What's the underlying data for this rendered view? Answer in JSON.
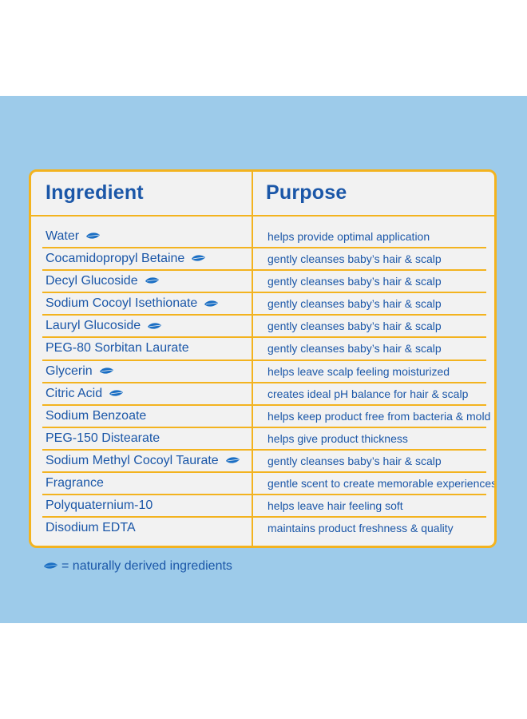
{
  "colors": {
    "background_band": "#9dcbea",
    "card": "#f2f2f2",
    "border": "#f3b31f",
    "text": "#1b57a8",
    "leaf": "#1b6fc4"
  },
  "table": {
    "header_ingredient": "Ingredient",
    "header_purpose": "Purpose",
    "rows": [
      {
        "ingredient": "Water",
        "natural": true,
        "purpose": "helps provide optimal application"
      },
      {
        "ingredient": "Cocamidopropyl Betaine",
        "natural": true,
        "purpose": "gently cleanses baby’s hair & scalp"
      },
      {
        "ingredient": "Decyl Glucoside",
        "natural": true,
        "purpose": "gently cleanses baby’s hair & scalp"
      },
      {
        "ingredient": "Sodium Cocoyl Isethionate",
        "natural": true,
        "purpose": "gently cleanses baby’s hair & scalp"
      },
      {
        "ingredient": "Lauryl Glucoside",
        "natural": true,
        "purpose": "gently cleanses baby’s hair & scalp"
      },
      {
        "ingredient": "PEG-80 Sorbitan Laurate",
        "natural": false,
        "purpose": "gently cleanses baby’s hair & scalp"
      },
      {
        "ingredient": "Glycerin",
        "natural": true,
        "purpose": "helps leave scalp feeling moisturized"
      },
      {
        "ingredient": "Citric Acid",
        "natural": true,
        "purpose": "creates ideal pH balance for hair & scalp"
      },
      {
        "ingredient": "Sodium Benzoate",
        "natural": false,
        "purpose": "helps keep product free from bacteria & mold"
      },
      {
        "ingredient": "PEG-150 Distearate",
        "natural": false,
        "purpose": "helps give product thickness"
      },
      {
        "ingredient": "Sodium Methyl Cocoyl Taurate",
        "natural": true,
        "purpose": "gently cleanses baby’s hair & scalp"
      },
      {
        "ingredient": "Fragrance",
        "natural": false,
        "purpose": "gentle scent to create memorable experiences"
      },
      {
        "ingredient": "Polyquaternium-10",
        "natural": false,
        "purpose": "helps leave hair feeling soft"
      },
      {
        "ingredient": "Disodium EDTA",
        "natural": false,
        "purpose": "maintains product freshness & quality"
      }
    ]
  },
  "legend": {
    "icon": "leaf-icon",
    "text": "= naturally derived ingredients"
  }
}
